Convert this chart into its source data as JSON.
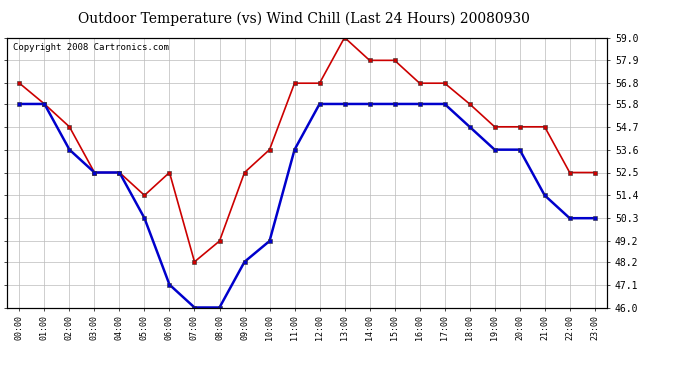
{
  "title": "Outdoor Temperature (vs) Wind Chill (Last 24 Hours) 20080930",
  "copyright": "Copyright 2008 Cartronics.com",
  "hours": [
    "00:00",
    "01:00",
    "02:00",
    "03:00",
    "04:00",
    "05:00",
    "06:00",
    "07:00",
    "08:00",
    "09:00",
    "10:00",
    "11:00",
    "12:00",
    "13:00",
    "14:00",
    "15:00",
    "16:00",
    "17:00",
    "18:00",
    "19:00",
    "20:00",
    "21:00",
    "22:00",
    "23:00"
  ],
  "temp": [
    56.8,
    55.8,
    54.7,
    52.5,
    52.5,
    51.4,
    52.5,
    48.2,
    49.2,
    52.5,
    53.6,
    56.8,
    56.8,
    59.0,
    57.9,
    57.9,
    56.8,
    56.8,
    55.8,
    54.7,
    54.7,
    54.7,
    52.5,
    52.5
  ],
  "wind_chill": [
    55.8,
    55.8,
    53.6,
    52.5,
    52.5,
    50.3,
    47.1,
    46.0,
    46.0,
    48.2,
    49.2,
    53.6,
    55.8,
    55.8,
    55.8,
    55.8,
    55.8,
    55.8,
    54.7,
    53.6,
    53.6,
    51.4,
    50.3,
    50.3
  ],
  "temp_color": "#cc0000",
  "wind_chill_color": "#0000cc",
  "ylim_min": 46.0,
  "ylim_max": 59.0,
  "yticks": [
    46.0,
    47.1,
    48.2,
    49.2,
    50.3,
    51.4,
    52.5,
    53.6,
    54.7,
    55.8,
    56.8,
    57.9,
    59.0
  ],
  "background_color": "#ffffff",
  "plot_bg_color": "#ffffff",
  "grid_color": "#bbbbbb",
  "title_fontsize": 10,
  "copyright_fontsize": 6.5
}
